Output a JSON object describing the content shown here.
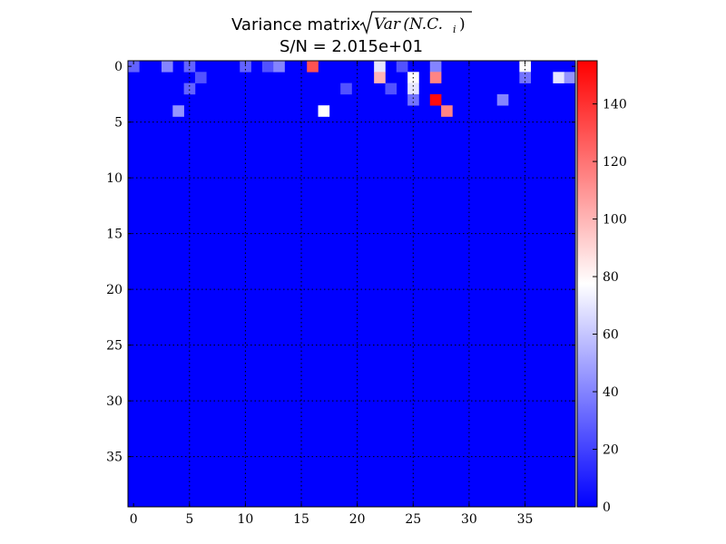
{
  "chart_data": {
    "type": "heatmap",
    "title_text": "Variance matrix ",
    "title_math_radicand": "Var (N.C.",
    "title_math_sub": "i",
    "title_math_close": ")",
    "subtitle": "S/N = 2.015e+01",
    "n_rows": 40,
    "n_cols": 40,
    "background_value": 0,
    "cells": [
      {
        "row": 0,
        "col": 0,
        "value": 30
      },
      {
        "row": 0,
        "col": 3,
        "value": 40
      },
      {
        "row": 0,
        "col": 5,
        "value": 30
      },
      {
        "row": 0,
        "col": 10,
        "value": 30
      },
      {
        "row": 0,
        "col": 12,
        "value": 25
      },
      {
        "row": 0,
        "col": 13,
        "value": 40
      },
      {
        "row": 0,
        "col": 16,
        "value": 130
      },
      {
        "row": 0,
        "col": 22,
        "value": 70
      },
      {
        "row": 0,
        "col": 24,
        "value": 25
      },
      {
        "row": 0,
        "col": 27,
        "value": 40
      },
      {
        "row": 0,
        "col": 35,
        "value": 78
      },
      {
        "row": 1,
        "col": 6,
        "value": 25
      },
      {
        "row": 1,
        "col": 22,
        "value": 100
      },
      {
        "row": 1,
        "col": 25,
        "value": 78
      },
      {
        "row": 1,
        "col": 27,
        "value": 115
      },
      {
        "row": 1,
        "col": 35,
        "value": 35
      },
      {
        "row": 1,
        "col": 38,
        "value": 70
      },
      {
        "row": 1,
        "col": 39,
        "value": 45
      },
      {
        "row": 2,
        "col": 5,
        "value": 30
      },
      {
        "row": 2,
        "col": 19,
        "value": 25
      },
      {
        "row": 2,
        "col": 23,
        "value": 25
      },
      {
        "row": 2,
        "col": 25,
        "value": 70
      },
      {
        "row": 3,
        "col": 25,
        "value": 35
      },
      {
        "row": 3,
        "col": 27,
        "value": 152
      },
      {
        "row": 3,
        "col": 33,
        "value": 40
      },
      {
        "row": 4,
        "col": 4,
        "value": 45
      },
      {
        "row": 4,
        "col": 17,
        "value": 78
      },
      {
        "row": 4,
        "col": 28,
        "value": 115
      }
    ],
    "x_ticks": [
      0,
      5,
      10,
      15,
      20,
      25,
      30,
      35
    ],
    "y_ticks": [
      0,
      5,
      10,
      15,
      20,
      25,
      30,
      35
    ],
    "grid": true,
    "colormap": "bwr",
    "colorbar": {
      "min": 0,
      "max": 155,
      "ticks": [
        0,
        20,
        40,
        60,
        80,
        100,
        120,
        140
      ]
    },
    "colors": {
      "low": "#0000ff",
      "mid": "#ffffff",
      "high": "#ff0000",
      "grid": "#000000"
    }
  }
}
